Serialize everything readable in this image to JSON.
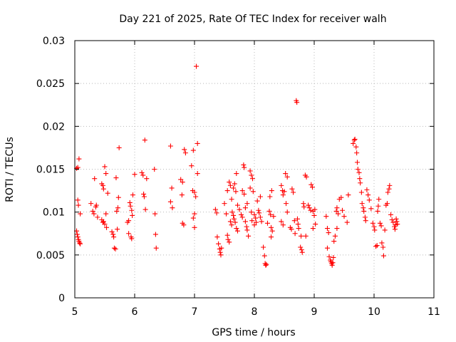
{
  "chart_data": {
    "type": "scatter",
    "title": "Day 221 of 2025, Rate Of TEC Index for receiver walh",
    "xlabel": "GPS time / hours",
    "ylabel": "ROTI / TECUs",
    "xlim": [
      5,
      11
    ],
    "ylim": [
      0,
      0.03
    ],
    "xticks": [
      "5",
      "6",
      "7",
      "8",
      "9",
      "10",
      "11"
    ],
    "yticks": [
      "0",
      "0.005",
      "0.01",
      "0.015",
      "0.02",
      "0.025",
      "0.03"
    ],
    "grid": true,
    "marker": "+",
    "color": "#ff0000",
    "series": [
      {
        "name": "walh",
        "points": [
          [
            5.03,
            0.0151
          ],
          [
            5.05,
            0.0152
          ],
          [
            5.07,
            0.0162
          ],
          [
            5.05,
            0.0114
          ],
          [
            5.06,
            0.0108
          ],
          [
            5.09,
            0.0098
          ],
          [
            5.03,
            0.0078
          ],
          [
            5.04,
            0.0074
          ],
          [
            5.05,
            0.0071
          ],
          [
            5.06,
            0.0068
          ],
          [
            5.07,
            0.0066
          ],
          [
            5.08,
            0.0064
          ],
          [
            5.09,
            0.0063
          ],
          [
            5.27,
            0.011
          ],
          [
            5.3,
            0.0101
          ],
          [
            5.32,
            0.0098
          ],
          [
            5.35,
            0.0106
          ],
          [
            5.36,
            0.0108
          ],
          [
            5.33,
            0.0139
          ],
          [
            5.38,
            0.0094
          ],
          [
            5.45,
            0.0133
          ],
          [
            5.47,
            0.0131
          ],
          [
            5.48,
            0.0127
          ],
          [
            5.5,
            0.0153
          ],
          [
            5.52,
            0.0145
          ],
          [
            5.45,
            0.0091
          ],
          [
            5.47,
            0.0088
          ],
          [
            5.5,
            0.0086
          ],
          [
            5.52,
            0.0098
          ],
          [
            5.55,
            0.0122
          ],
          [
            5.48,
            0.0089
          ],
          [
            5.53,
            0.0082
          ],
          [
            5.62,
            0.0077
          ],
          [
            5.64,
            0.0074
          ],
          [
            5.65,
            0.0071
          ],
          [
            5.66,
            0.0058
          ],
          [
            5.68,
            0.0057
          ],
          [
            5.7,
            0.0101
          ],
          [
            5.72,
            0.0105
          ],
          [
            5.73,
            0.0117
          ],
          [
            5.74,
            0.0175
          ],
          [
            5.69,
            0.014
          ],
          [
            5.71,
            0.008
          ],
          [
            5.88,
            0.0088
          ],
          [
            5.9,
            0.009
          ],
          [
            5.92,
            0.0111
          ],
          [
            5.93,
            0.0107
          ],
          [
            5.95,
            0.0102
          ],
          [
            5.96,
            0.0096
          ],
          [
            5.9,
            0.0075
          ],
          [
            5.94,
            0.0071
          ],
          [
            5.95,
            0.0069
          ],
          [
            6.0,
            0.0144
          ],
          [
            5.97,
            0.012
          ],
          [
            6.12,
            0.0146
          ],
          [
            6.14,
            0.0143
          ],
          [
            6.17,
            0.0184
          ],
          [
            6.15,
            0.0121
          ],
          [
            6.16,
            0.0118
          ],
          [
            6.2,
            0.0139
          ],
          [
            6.18,
            0.0103
          ],
          [
            6.33,
            0.015
          ],
          [
            6.34,
            0.0098
          ],
          [
            6.35,
            0.0074
          ],
          [
            6.36,
            0.0058
          ],
          [
            6.6,
            0.0177
          ],
          [
            6.62,
            0.0128
          ],
          [
            6.6,
            0.0112
          ],
          [
            6.63,
            0.0105
          ],
          [
            6.77,
            0.0138
          ],
          [
            6.8,
            0.0135
          ],
          [
            6.83,
            0.0173
          ],
          [
            6.85,
            0.0169
          ],
          [
            6.8,
            0.0087
          ],
          [
            6.82,
            0.0085
          ],
          [
            6.79,
            0.012
          ],
          [
            6.95,
            0.0154
          ],
          [
            6.98,
            0.0172
          ],
          [
            7.05,
            0.018
          ],
          [
            7.03,
            0.027
          ],
          [
            6.97,
            0.0125
          ],
          [
            7.0,
            0.0123
          ],
          [
            7.02,
            0.0118
          ],
          [
            7.05,
            0.0145
          ],
          [
            6.98,
            0.0093
          ],
          [
            7.0,
            0.0082
          ],
          [
            7.0,
            0.0098
          ],
          [
            7.35,
            0.0103
          ],
          [
            7.37,
            0.0099
          ],
          [
            7.38,
            0.0071
          ],
          [
            7.4,
            0.0063
          ],
          [
            7.42,
            0.0057
          ],
          [
            7.43,
            0.0053
          ],
          [
            7.44,
            0.005
          ],
          [
            7.45,
            0.0058
          ],
          [
            7.5,
            0.011
          ],
          [
            7.53,
            0.0098
          ],
          [
            7.55,
            0.0073
          ],
          [
            7.56,
            0.0068
          ],
          [
            7.58,
            0.0065
          ],
          [
            7.6,
            0.0089
          ],
          [
            7.62,
            0.0085
          ],
          [
            7.55,
            0.0125
          ],
          [
            7.58,
            0.0135
          ],
          [
            7.6,
            0.0131
          ],
          [
            7.62,
            0.0115
          ],
          [
            7.63,
            0.01
          ],
          [
            7.65,
            0.0096
          ],
          [
            7.66,
            0.0092
          ],
          [
            7.68,
            0.0088
          ],
          [
            7.7,
            0.0081
          ],
          [
            7.72,
            0.0078
          ],
          [
            7.65,
            0.0128
          ],
          [
            7.67,
            0.0133
          ],
          [
            7.69,
            0.0124
          ],
          [
            7.7,
            0.0145
          ],
          [
            7.72,
            0.0108
          ],
          [
            7.75,
            0.0103
          ],
          [
            7.78,
            0.0097
          ],
          [
            7.8,
            0.0094
          ],
          [
            7.82,
            0.0155
          ],
          [
            7.83,
            0.0152
          ],
          [
            7.8,
            0.0125
          ],
          [
            7.83,
            0.0121
          ],
          [
            7.85,
            0.0089
          ],
          [
            7.87,
            0.0083
          ],
          [
            7.88,
            0.0079
          ],
          [
            7.9,
            0.0072
          ],
          [
            7.85,
            0.0105
          ],
          [
            7.88,
            0.011
          ],
          [
            7.93,
            0.0148
          ],
          [
            7.95,
            0.0143
          ],
          [
            7.97,
            0.0139
          ],
          [
            7.93,
            0.0128
          ],
          [
            7.98,
            0.0124
          ],
          [
            7.95,
            0.01
          ],
          [
            8.0,
            0.0097
          ],
          [
            8.02,
            0.0093
          ],
          [
            8.03,
            0.0088
          ],
          [
            7.96,
            0.009
          ],
          [
            8.0,
            0.0085
          ],
          [
            8.05,
            0.0113
          ],
          [
            8.07,
            0.0102
          ],
          [
            8.08,
            0.0099
          ],
          [
            8.1,
            0.0094
          ],
          [
            8.12,
            0.0089
          ],
          [
            8.1,
            0.0118
          ],
          [
            8.15,
            0.0059
          ],
          [
            8.17,
            0.0049
          ],
          [
            8.18,
            0.004
          ],
          [
            8.2,
            0.0039
          ],
          [
            8.19,
            0.0038
          ],
          [
            8.22,
            0.0087
          ],
          [
            8.25,
            0.0101
          ],
          [
            8.27,
            0.0097
          ],
          [
            8.28,
            0.0082
          ],
          [
            8.3,
            0.0078
          ],
          [
            8.26,
            0.0118
          ],
          [
            8.29,
            0.0125
          ],
          [
            8.28,
            0.0071
          ],
          [
            8.32,
            0.0095
          ],
          [
            8.45,
            0.0131
          ],
          [
            8.47,
            0.0125
          ],
          [
            8.48,
            0.012
          ],
          [
            8.5,
            0.0124
          ],
          [
            8.52,
            0.0145
          ],
          [
            8.55,
            0.0141
          ],
          [
            8.45,
            0.0089
          ],
          [
            8.48,
            0.0085
          ],
          [
            8.53,
            0.011
          ],
          [
            8.55,
            0.01
          ],
          [
            8.6,
            0.0082
          ],
          [
            8.62,
            0.008
          ],
          [
            8.63,
            0.0127
          ],
          [
            8.65,
            0.0123
          ],
          [
            8.67,
            0.009
          ],
          [
            8.7,
            0.023
          ],
          [
            8.71,
            0.0228
          ],
          [
            8.72,
            0.0092
          ],
          [
            8.73,
            0.0086
          ],
          [
            8.74,
            0.0081
          ],
          [
            8.68,
            0.0075
          ],
          [
            8.77,
            0.0059
          ],
          [
            8.79,
            0.0056
          ],
          [
            8.8,
            0.0053
          ],
          [
            8.78,
            0.0072
          ],
          [
            8.82,
            0.011
          ],
          [
            8.83,
            0.0106
          ],
          [
            8.85,
            0.0143
          ],
          [
            8.87,
            0.0141
          ],
          [
            8.86,
            0.0072
          ],
          [
            8.9,
            0.0108
          ],
          [
            8.92,
            0.0105
          ],
          [
            8.94,
            0.0102
          ],
          [
            8.95,
            0.0132
          ],
          [
            8.97,
            0.0129
          ],
          [
            8.98,
            0.0101
          ],
          [
            9.0,
            0.0096
          ],
          [
            8.98,
            0.0081
          ],
          [
            9.02,
            0.0086
          ],
          [
            9.01,
            0.0103
          ],
          [
            9.2,
            0.0095
          ],
          [
            9.22,
            0.0081
          ],
          [
            9.24,
            0.0076
          ],
          [
            9.22,
            0.0058
          ],
          [
            9.25,
            0.0048
          ],
          [
            9.27,
            0.0044
          ],
          [
            9.28,
            0.0042
          ],
          [
            9.29,
            0.004
          ],
          [
            9.3,
            0.0038
          ],
          [
            9.31,
            0.0041
          ],
          [
            9.32,
            0.0047
          ],
          [
            9.33,
            0.0066
          ],
          [
            9.35,
            0.0072
          ],
          [
            9.37,
            0.0101
          ],
          [
            9.38,
            0.0105
          ],
          [
            9.4,
            0.0098
          ],
          [
            9.38,
            0.0081
          ],
          [
            9.42,
            0.0115
          ],
          [
            9.45,
            0.0117
          ],
          [
            9.47,
            0.0102
          ],
          [
            9.5,
            0.0095
          ],
          [
            9.55,
            0.0088
          ],
          [
            9.57,
            0.012
          ],
          [
            9.65,
            0.018
          ],
          [
            9.67,
            0.0184
          ],
          [
            9.68,
            0.0185
          ],
          [
            9.7,
            0.0176
          ],
          [
            9.71,
            0.0169
          ],
          [
            9.72,
            0.0158
          ],
          [
            9.73,
            0.015
          ],
          [
            9.75,
            0.0146
          ],
          [
            9.76,
            0.0139
          ],
          [
            9.77,
            0.0134
          ],
          [
            9.79,
            0.0123
          ],
          [
            9.8,
            0.011
          ],
          [
            9.82,
            0.0105
          ],
          [
            9.83,
            0.0101
          ],
          [
            9.85,
            0.0094
          ],
          [
            9.86,
            0.009
          ],
          [
            9.88,
            0.0126
          ],
          [
            9.9,
            0.012
          ],
          [
            9.92,
            0.0114
          ],
          [
            9.95,
            0.0104
          ],
          [
            9.98,
            0.0087
          ],
          [
            10.0,
            0.0083
          ],
          [
            10.01,
            0.0079
          ],
          [
            10.03,
            0.006
          ],
          [
            10.05,
            0.0061
          ],
          [
            10.06,
            0.0101
          ],
          [
            10.07,
            0.0107
          ],
          [
            10.08,
            0.0115
          ],
          [
            10.1,
            0.0087
          ],
          [
            10.12,
            0.0084
          ],
          [
            10.13,
            0.0064
          ],
          [
            10.15,
            0.0059
          ],
          [
            10.16,
            0.0049
          ],
          [
            10.18,
            0.0079
          ],
          [
            10.2,
            0.0108
          ],
          [
            10.22,
            0.011
          ],
          [
            10.23,
            0.0123
          ],
          [
            10.25,
            0.0127
          ],
          [
            10.26,
            0.0131
          ],
          [
            10.28,
            0.0097
          ],
          [
            10.3,
            0.0091
          ],
          [
            10.32,
            0.0088
          ],
          [
            10.34,
            0.0083
          ],
          [
            10.35,
            0.008
          ],
          [
            10.36,
            0.0085
          ],
          [
            10.37,
            0.0092
          ],
          [
            10.38,
            0.0089
          ],
          [
            10.39,
            0.0086
          ]
        ]
      }
    ]
  }
}
